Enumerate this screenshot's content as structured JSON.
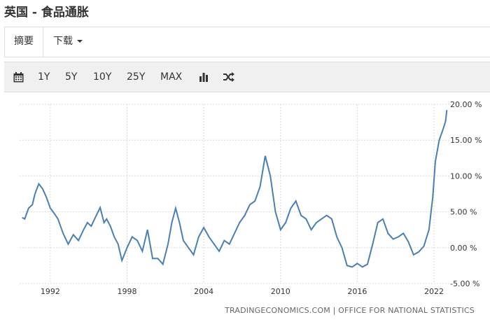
{
  "title": "英国 - 食品通胀",
  "tabs": [
    {
      "label": "摘要"
    },
    {
      "label": "下载"
    }
  ],
  "toolbar": {
    "ranges": [
      "1Y",
      "5Y",
      "10Y",
      "25Y",
      "MAX"
    ],
    "icons": [
      "calendar-icon",
      "bar-chart-icon",
      "shuffle-icon"
    ]
  },
  "source": "TRADINGECONOMICS.COM | OFFICE FOR NATIONAL STATISTICS",
  "colors": {
    "line": "#4a7fb5",
    "grid": "#d9d9d9"
  },
  "chart_data": {
    "type": "line",
    "x_tick_labels": [
      "1992",
      "1998",
      "2004",
      "2010",
      "2016",
      "2022"
    ],
    "y_tick_labels": [
      "20.00 %",
      "15.00 %",
      "10.00 %",
      "5.00 %",
      "0.00 %",
      "-5.00 %"
    ],
    "ylim": [
      -5,
      20
    ],
    "xlim": [
      1989.6,
      2023.2
    ],
    "grid": true,
    "series": [
      {
        "x": [
          1989.8,
          1990.0,
          1990.3,
          1990.6,
          1990.8,
          1991.1,
          1991.4,
          1991.7,
          1992.0,
          1992.3,
          1992.6,
          1993.0,
          1993.4,
          1993.8,
          1994.2,
          1994.6,
          1994.9,
          1995.2,
          1995.6,
          1995.9,
          1996.2,
          1996.4,
          1996.7,
          1997.0,
          1997.3,
          1997.6,
          1998.0,
          1998.4,
          1998.8,
          1999.2,
          1999.6,
          2000.0,
          2000.4,
          2000.8,
          2001.2,
          2001.5,
          2001.8,
          2002.1,
          2002.4,
          2002.8,
          2003.2,
          2003.6,
          2004.0,
          2004.4,
          2004.8,
          2005.2,
          2005.6,
          2006.0,
          2006.4,
          2006.8,
          2007.2,
          2007.6,
          2008.0,
          2008.4,
          2008.8,
          2009.2,
          2009.6,
          2010.0,
          2010.4,
          2010.8,
          2011.2,
          2011.6,
          2012.0,
          2012.4,
          2012.8,
          2013.2,
          2013.6,
          2014.0,
          2014.4,
          2014.8,
          2015.2,
          2015.6,
          2016.0,
          2016.4,
          2016.8,
          2017.2,
          2017.6,
          2018.0,
          2018.4,
          2018.8,
          2019.2,
          2019.6,
          2020.0,
          2020.4,
          2020.8,
          2021.2,
          2021.6,
          2021.9,
          2022.1,
          2022.4,
          2022.7,
          2022.9,
          2023.0
        ],
        "values": [
          4.2,
          4.0,
          5.5,
          6.0,
          7.5,
          8.9,
          8.2,
          7.0,
          5.5,
          4.8,
          4.0,
          2.0,
          0.5,
          1.8,
          1.0,
          2.5,
          3.5,
          3.0,
          4.5,
          5.6,
          3.5,
          4.0,
          3.0,
          1.5,
          0.5,
          -1.8,
          0.0,
          1.5,
          1.0,
          -0.5,
          2.5,
          -1.5,
          -1.5,
          -2.3,
          0.5,
          3.5,
          5.5,
          3.5,
          1.0,
          0.0,
          -1.0,
          1.5,
          2.8,
          1.5,
          0.5,
          -0.5,
          1.0,
          0.5,
          2.0,
          3.5,
          4.5,
          6.0,
          6.5,
          8.5,
          12.8,
          10.0,
          5.0,
          2.5,
          3.5,
          5.5,
          6.5,
          4.5,
          4.0,
          2.5,
          3.5,
          4.0,
          4.5,
          4.0,
          1.5,
          0.0,
          -2.5,
          -2.7,
          -2.2,
          -2.7,
          -2.3,
          0.5,
          3.5,
          4.0,
          2.0,
          1.2,
          1.5,
          2.0,
          0.8,
          -1.0,
          -0.6,
          0.2,
          2.5,
          7.0,
          12.0,
          15.0,
          16.5,
          17.6,
          19.2
        ]
      }
    ]
  }
}
